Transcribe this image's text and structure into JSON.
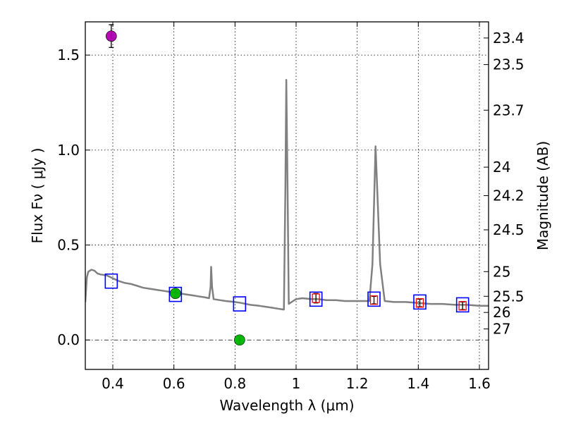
{
  "chart_data": {
    "type": "scatter",
    "xlabel": "Wavelength  λ (μm)",
    "ylabel": "Flux  Fν  ( μJy )",
    "y2label": "Magnitude (AB)",
    "xlim": [
      0.31,
      1.63
    ],
    "ylim": [
      -0.155,
      1.675
    ],
    "grid": true,
    "x_ticks": [
      0.4,
      0.6,
      0.8,
      1.0,
      1.2,
      1.4,
      1.6
    ],
    "x_tick_labels": [
      "0.4",
      "0.6",
      "0.8",
      "1",
      "1.2",
      "1.4",
      "1.6"
    ],
    "y_ticks": [
      0.0,
      0.5,
      1.0,
      1.5
    ],
    "y_tick_labels": [
      "0.0",
      "0.5",
      "1.0",
      "1.5"
    ],
    "mag_ticks": [
      {
        "label": "23.4",
        "flux": 1.59
      },
      {
        "label": "23.5",
        "flux": 1.45
      },
      {
        "label": "23.7",
        "flux": 1.21
      },
      {
        "label": "24",
        "flux": 0.91
      },
      {
        "label": "24.2",
        "flux": 0.76
      },
      {
        "label": "24.5",
        "flux": 0.58
      },
      {
        "label": "25",
        "flux": 0.36
      },
      {
        "label": "25.5",
        "flux": 0.23
      },
      {
        "label": "26",
        "flux": 0.145
      },
      {
        "label": "27",
        "flux": 0.058
      }
    ],
    "series": [
      {
        "name": "model spectrum",
        "kind": "line",
        "color": "#808080",
        "points": [
          [
            0.31,
            0.2
          ],
          [
            0.315,
            0.33
          ],
          [
            0.32,
            0.36
          ],
          [
            0.33,
            0.37
          ],
          [
            0.34,
            0.365
          ],
          [
            0.35,
            0.35
          ],
          [
            0.36,
            0.345
          ],
          [
            0.38,
            0.34
          ],
          [
            0.4,
            0.325
          ],
          [
            0.42,
            0.31
          ],
          [
            0.44,
            0.3
          ],
          [
            0.46,
            0.295
          ],
          [
            0.48,
            0.285
          ],
          [
            0.5,
            0.275
          ],
          [
            0.52,
            0.27
          ],
          [
            0.54,
            0.265
          ],
          [
            0.56,
            0.26
          ],
          [
            0.58,
            0.255
          ],
          [
            0.6,
            0.25
          ],
          [
            0.62,
            0.245
          ],
          [
            0.64,
            0.24
          ],
          [
            0.66,
            0.235
          ],
          [
            0.68,
            0.23
          ],
          [
            0.7,
            0.225
          ],
          [
            0.715,
            0.22
          ],
          [
            0.72,
            0.28
          ],
          [
            0.722,
            0.385
          ],
          [
            0.725,
            0.28
          ],
          [
            0.73,
            0.215
          ],
          [
            0.75,
            0.21
          ],
          [
            0.77,
            0.205
          ],
          [
            0.8,
            0.2
          ],
          [
            0.82,
            0.195
          ],
          [
            0.85,
            0.185
          ],
          [
            0.88,
            0.18
          ],
          [
            0.9,
            0.175
          ],
          [
            0.92,
            0.17
          ],
          [
            0.94,
            0.165
          ],
          [
            0.96,
            0.16
          ],
          [
            0.965,
            0.8
          ],
          [
            0.968,
            1.37
          ],
          [
            0.972,
            0.8
          ],
          [
            0.976,
            0.19
          ],
          [
            0.99,
            0.205
          ],
          [
            1.0,
            0.215
          ],
          [
            1.02,
            0.22
          ],
          [
            1.05,
            0.215
          ],
          [
            1.07,
            0.215
          ],
          [
            1.1,
            0.21
          ],
          [
            1.13,
            0.21
          ],
          [
            1.16,
            0.205
          ],
          [
            1.2,
            0.205
          ],
          [
            1.24,
            0.205
          ],
          [
            1.25,
            0.4
          ],
          [
            1.26,
            1.02
          ],
          [
            1.275,
            0.4
          ],
          [
            1.29,
            0.205
          ],
          [
            1.32,
            0.2
          ],
          [
            1.36,
            0.2
          ],
          [
            1.4,
            0.195
          ],
          [
            1.44,
            0.19
          ],
          [
            1.48,
            0.19
          ],
          [
            1.52,
            0.185
          ],
          [
            1.56,
            0.185
          ],
          [
            1.6,
            0.18
          ],
          [
            1.63,
            0.18
          ]
        ]
      },
      {
        "name": "model broadband photometry",
        "kind": "square-marker",
        "color": "#0000ff",
        "x": [
          0.395,
          0.605,
          0.815,
          1.065,
          1.255,
          1.405,
          1.545
        ],
        "y": [
          0.31,
          0.24,
          0.19,
          0.215,
          0.215,
          0.2,
          0.185
        ]
      },
      {
        "name": "observed photometry (green)",
        "kind": "circle",
        "color": "#00b400",
        "x": [
          0.605,
          0.815
        ],
        "y": [
          0.245,
          0.0
        ],
        "yerr": [
          0.02,
          0.02
        ]
      },
      {
        "name": "observed photometry (red)",
        "kind": "small-square",
        "color": "#ff0000",
        "x": [
          1.065,
          1.255,
          1.405,
          1.545
        ],
        "y": [
          0.22,
          0.21,
          0.195,
          0.18
        ],
        "yerr": [
          0.025,
          0.02,
          0.02,
          0.02
        ]
      },
      {
        "name": "observed photometry (magenta)",
        "kind": "circle",
        "color": "#b000b0",
        "x": [
          0.395
        ],
        "y": [
          1.6
        ],
        "yerr": [
          0.06
        ]
      }
    ]
  }
}
